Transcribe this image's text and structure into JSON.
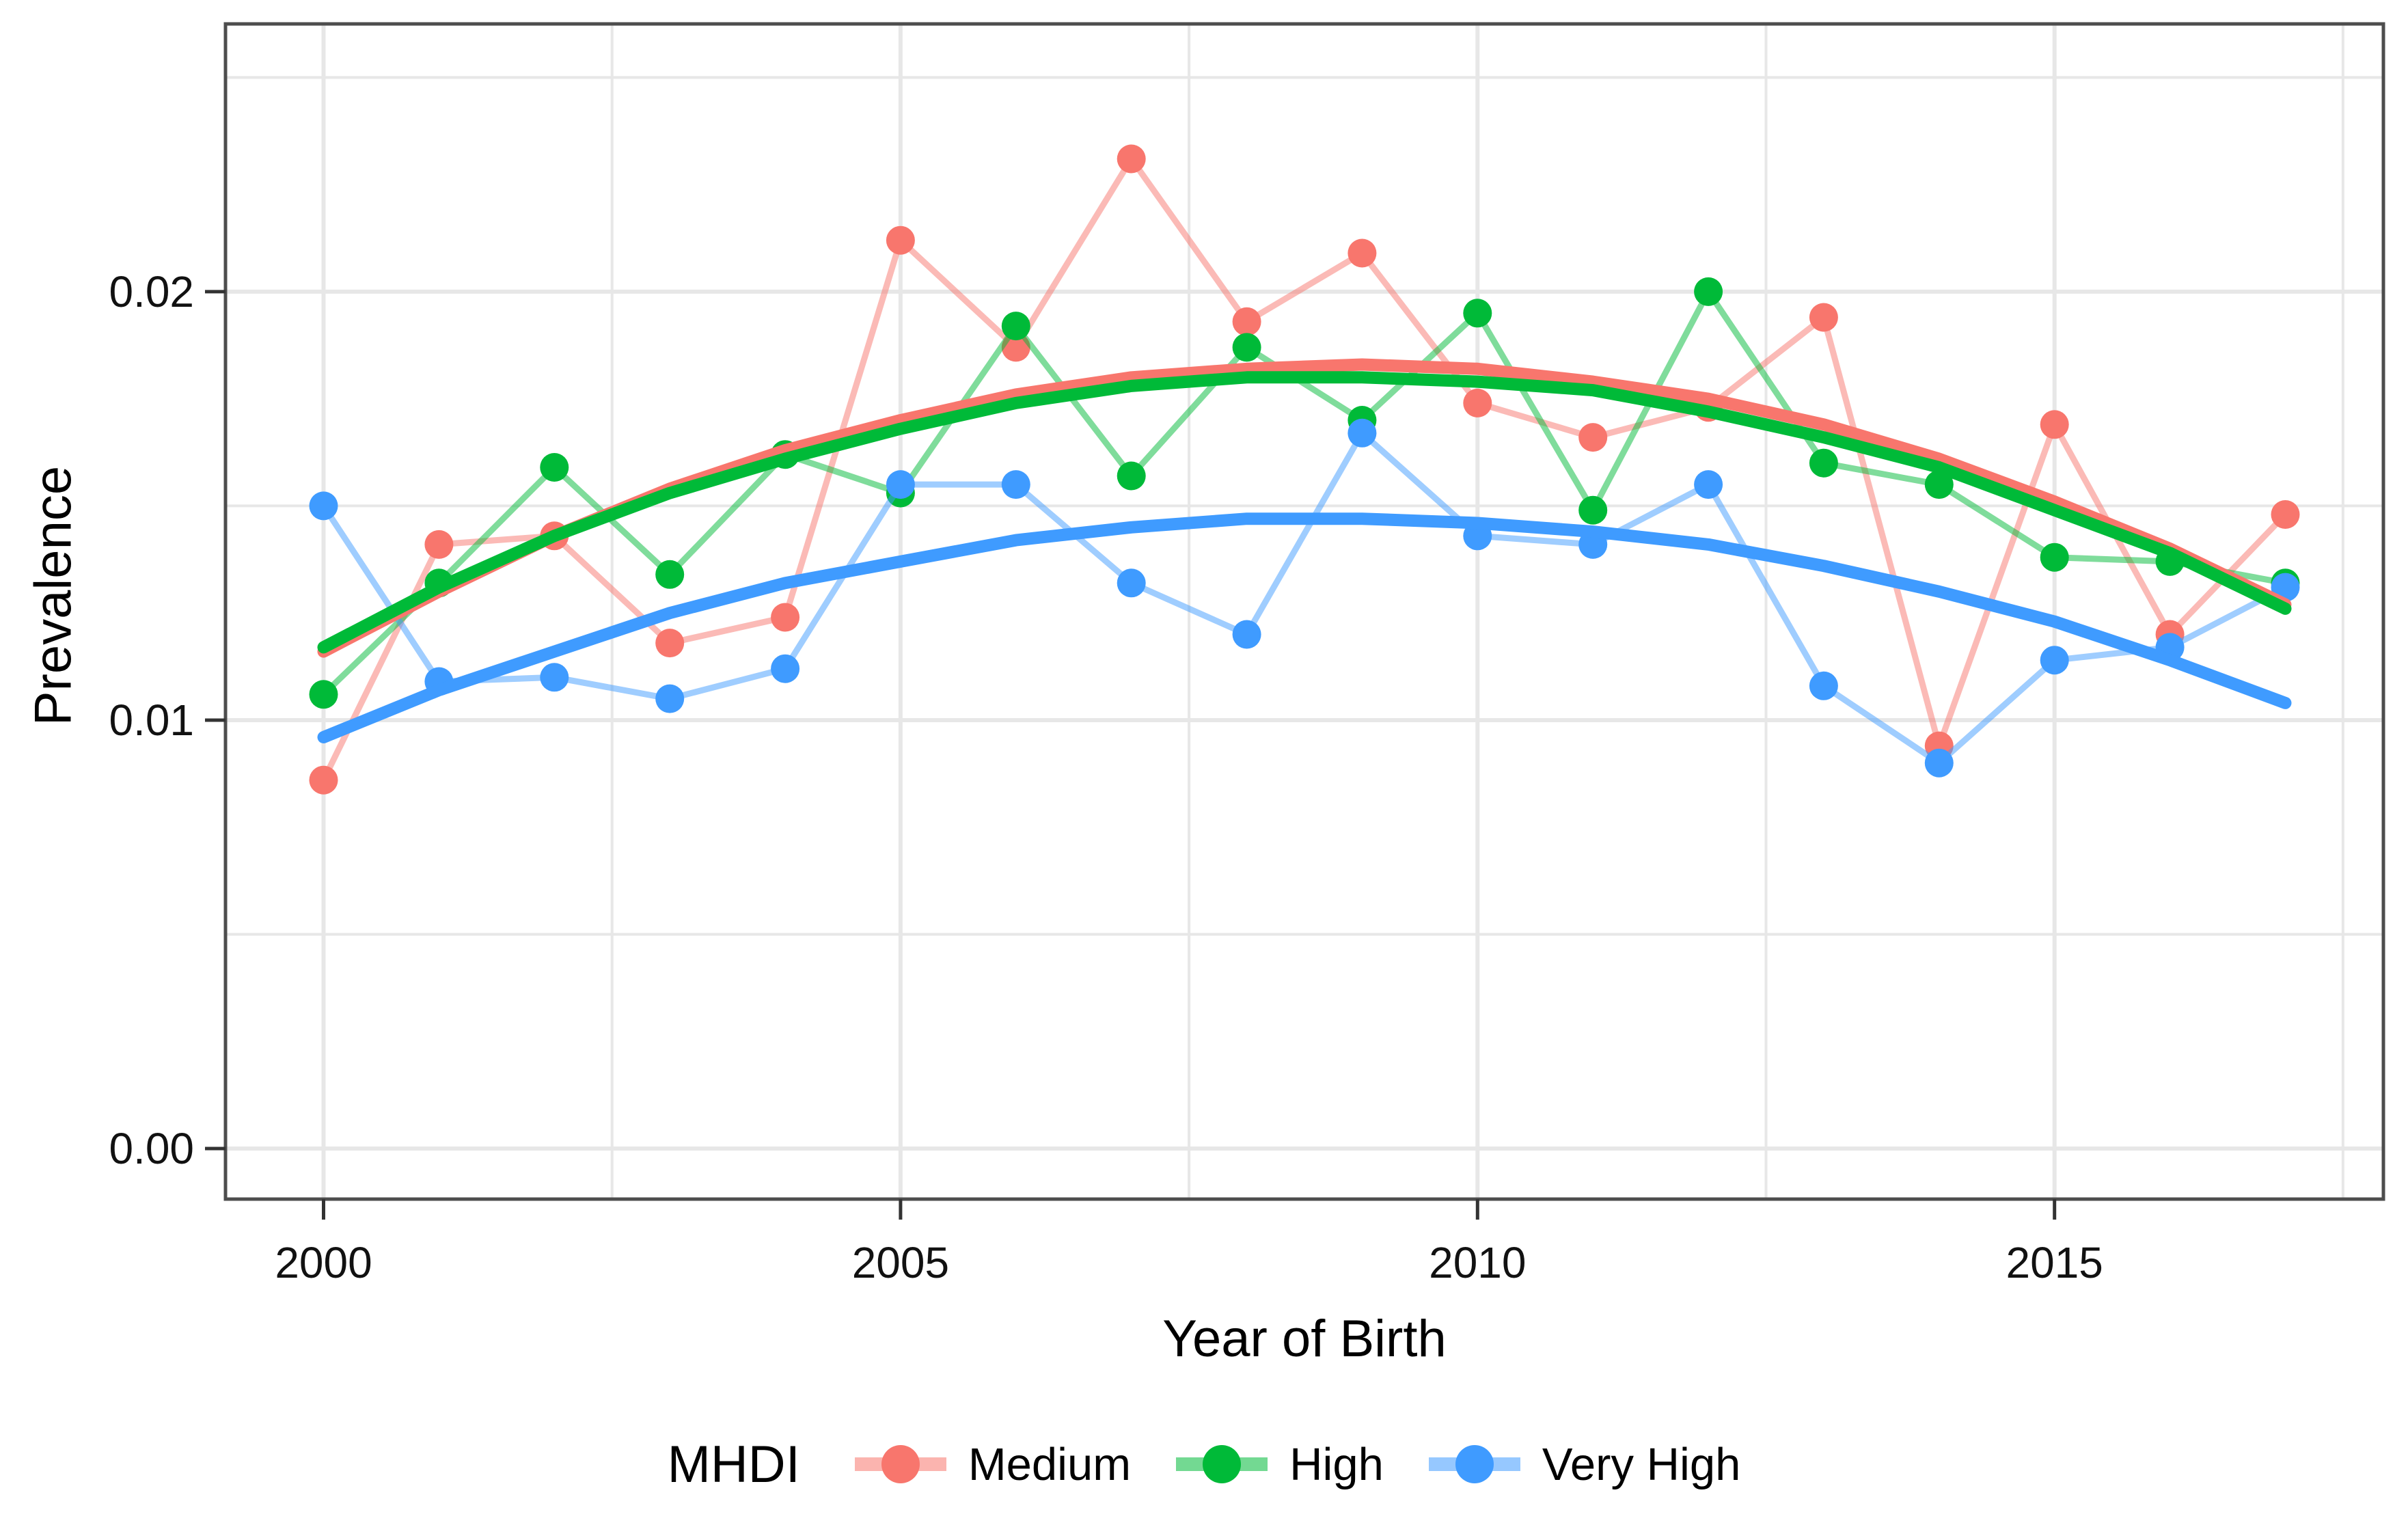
{
  "chart_data": {
    "type": "line",
    "title": "",
    "xlabel": "Year of Birth",
    "ylabel": "Prevalence",
    "legend_title": "MHDI",
    "legend_position": "bottom",
    "grid": "on",
    "xlim": [
      1999.15,
      2017.85
    ],
    "ylim": [
      -0.00118,
      0.02625
    ],
    "x_ticks": [
      2000,
      2005,
      2010,
      2015
    ],
    "x_tick_labels": [
      "2000",
      "2005",
      "2010",
      "2015"
    ],
    "x_minor_ticks": [
      2002.5,
      2007.5,
      2012.5,
      2017.5
    ],
    "y_ticks": [
      0,
      0.01,
      0.02
    ],
    "y_tick_labels": [
      "0.00",
      "0.01",
      "0.02"
    ],
    "y_minor_ticks": [
      0.005,
      0.015,
      0.025
    ],
    "x": [
      2000,
      2001,
      2002,
      2003,
      2004,
      2005,
      2006,
      2007,
      2008,
      2009,
      2010,
      2011,
      2012,
      2013,
      2014,
      2015,
      2016,
      2017
    ],
    "series": [
      {
        "name": "Medium",
        "color": "#F8766D",
        "values": [
          0.0086,
          0.0141,
          0.0143,
          0.0118,
          0.0124,
          0.0212,
          0.0187,
          0.0231,
          0.0193,
          0.0209,
          0.0174,
          0.0166,
          0.0173,
          0.0194,
          0.0094,
          0.0169,
          0.012,
          0.0148
        ],
        "trend": [
          0.0116,
          0.013,
          0.0143,
          0.0154,
          0.0163,
          0.017,
          0.0176,
          0.018,
          0.0182,
          0.0183,
          0.0182,
          0.0179,
          0.0175,
          0.0169,
          0.0161,
          0.0151,
          0.014,
          0.0127
        ]
      },
      {
        "name": "High",
        "color": "#00BA38",
        "values": [
          0.0106,
          0.0132,
          0.0159,
          0.0134,
          0.0162,
          0.0153,
          0.0192,
          0.0157,
          0.0187,
          0.017,
          0.0195,
          0.0149,
          0.02,
          0.016,
          0.0155,
          0.0138,
          0.0137,
          0.0132
        ],
        "trend": [
          0.0117,
          0.0131,
          0.0143,
          0.0153,
          0.0161,
          0.0168,
          0.0174,
          0.0178,
          0.018,
          0.018,
          0.0179,
          0.0177,
          0.0172,
          0.0166,
          0.0159,
          0.0149,
          0.0139,
          0.0126
        ]
      },
      {
        "name": "Very High",
        "color": "#3F9BFF",
        "values": [
          0.015,
          0.0109,
          0.011,
          0.0105,
          0.0112,
          0.0155,
          0.0155,
          0.0132,
          0.012,
          0.0167,
          0.0143,
          0.0141,
          0.0155,
          0.0108,
          0.009,
          0.0114,
          0.0117,
          0.0131
        ],
        "trend": [
          0.0096,
          0.0107,
          0.0116,
          0.0125,
          0.0132,
          0.0137,
          0.0142,
          0.0145,
          0.0147,
          0.0147,
          0.0146,
          0.0144,
          0.0141,
          0.0136,
          0.013,
          0.0123,
          0.0114,
          0.0104
        ]
      }
    ]
  }
}
